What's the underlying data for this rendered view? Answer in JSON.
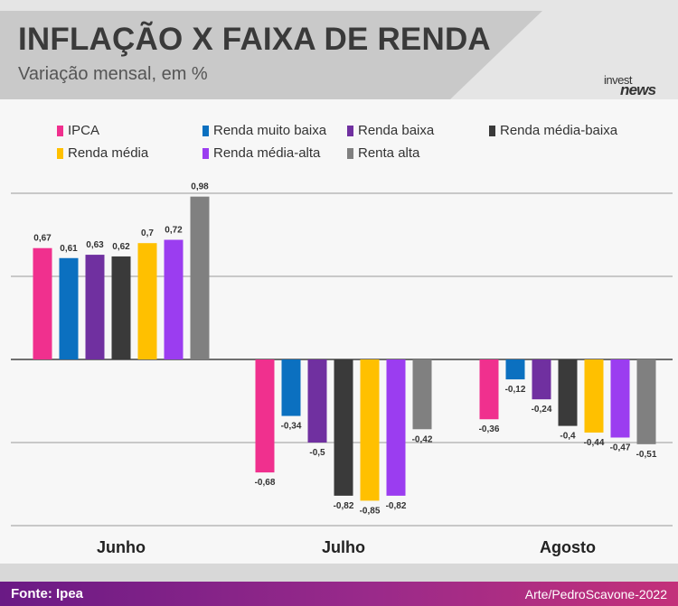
{
  "header": {
    "title": "INFLAÇÃO X FAIXA DE RENDA",
    "subtitle": "Variação mensal, em %",
    "logo_line1": "invest",
    "logo_line2": "news"
  },
  "footer": {
    "source": "Fonte: Ipea",
    "credit": "Arte/PedroScavone-2022"
  },
  "chart_data": {
    "type": "bar",
    "title": "INFLAÇÃO X FAIXA DE RENDA",
    "subtitle": "Variação mensal, em %",
    "categories": [
      "Junho",
      "Julho",
      "Agosto"
    ],
    "ylim": [
      -1.0,
      1.0
    ],
    "grid": true,
    "legend_position": "top",
    "series": [
      {
        "name": "IPCA",
        "color": "#f0308e",
        "values": [
          0.67,
          -0.68,
          -0.36
        ]
      },
      {
        "name": "Renda muito baixa",
        "color": "#0b70c0",
        "values": [
          0.61,
          -0.34,
          -0.12
        ]
      },
      {
        "name": "Renda baixa",
        "color": "#7030a0",
        "values": [
          0.63,
          -0.5,
          -0.24
        ]
      },
      {
        "name": "Renda média-baixa",
        "color": "#3a3a3a",
        "values": [
          0.62,
          -0.82,
          -0.4
        ]
      },
      {
        "name": "Renda média",
        "color": "#ffc000",
        "values": [
          0.7,
          -0.85,
          -0.44
        ]
      },
      {
        "name": "Renda média-alta",
        "color": "#9b3df0",
        "values": [
          0.72,
          -0.82,
          -0.47
        ]
      },
      {
        "name": "Renta alta",
        "color": "#808080",
        "values": [
          0.98,
          -0.42,
          -0.51
        ]
      }
    ]
  }
}
